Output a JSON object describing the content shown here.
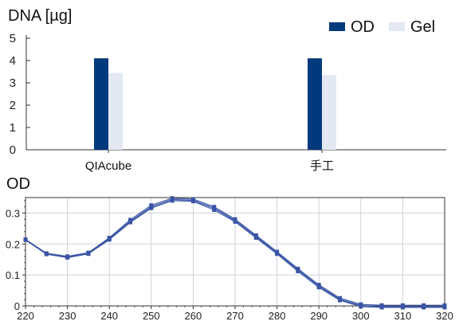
{
  "chart_data": [
    {
      "type": "bar",
      "ylabel": "DNA [µg]",
      "categories": [
        "QIAcube",
        "手工"
      ],
      "ylim": [
        0,
        5
      ],
      "yticks": [
        0,
        1,
        2,
        3,
        4,
        5
      ],
      "series": [
        {
          "name": "OD",
          "values": [
            4.1,
            4.1
          ],
          "color": "#003a7d"
        },
        {
          "name": "Gel",
          "values": [
            3.45,
            3.35
          ],
          "color": "#e3e8f3"
        }
      ],
      "legend": "top-right",
      "grid": false
    },
    {
      "type": "line",
      "ylabel": "OD",
      "xlim": [
        220,
        320
      ],
      "ylim": [
        0,
        0.35
      ],
      "xticks": [
        220,
        230,
        240,
        250,
        260,
        270,
        280,
        290,
        300,
        310,
        320
      ],
      "yticks": [
        0,
        0.1,
        0.2,
        0.3
      ],
      "ytick_labels": [
        "0",
        "0.1",
        "0.2",
        "0.3"
      ],
      "grid": true,
      "x": [
        220,
        225,
        230,
        235,
        240,
        245,
        250,
        255,
        260,
        265,
        270,
        275,
        280,
        285,
        290,
        295,
        300,
        305,
        310,
        315,
        320
      ],
      "series": [
        {
          "values": [
            0.215,
            0.17,
            0.16,
            0.172,
            0.22,
            0.278,
            0.325,
            0.348,
            0.345,
            0.32,
            0.28,
            0.228,
            0.175,
            0.12,
            0.068,
            0.025,
            0.005,
            0.002,
            0.002,
            0.002,
            0.002
          ],
          "color": "#3a55a5"
        },
        {
          "values": [
            0.213,
            0.167,
            0.156,
            0.168,
            0.214,
            0.27,
            0.316,
            0.34,
            0.338,
            0.31,
            0.272,
            0.22,
            0.168,
            0.112,
            0.06,
            0.018,
            -0.002,
            -0.005,
            -0.005,
            -0.005,
            -0.005
          ],
          "color": "#3a55a5"
        },
        {
          "values": [
            0.214,
            0.168,
            0.158,
            0.17,
            0.217,
            0.273,
            0.32,
            0.344,
            0.341,
            0.315,
            0.276,
            0.224,
            0.171,
            0.116,
            0.064,
            0.021,
            0.001,
            -0.002,
            -0.002,
            -0.002,
            -0.002
          ],
          "color": "#3a55a5"
        }
      ]
    }
  ]
}
